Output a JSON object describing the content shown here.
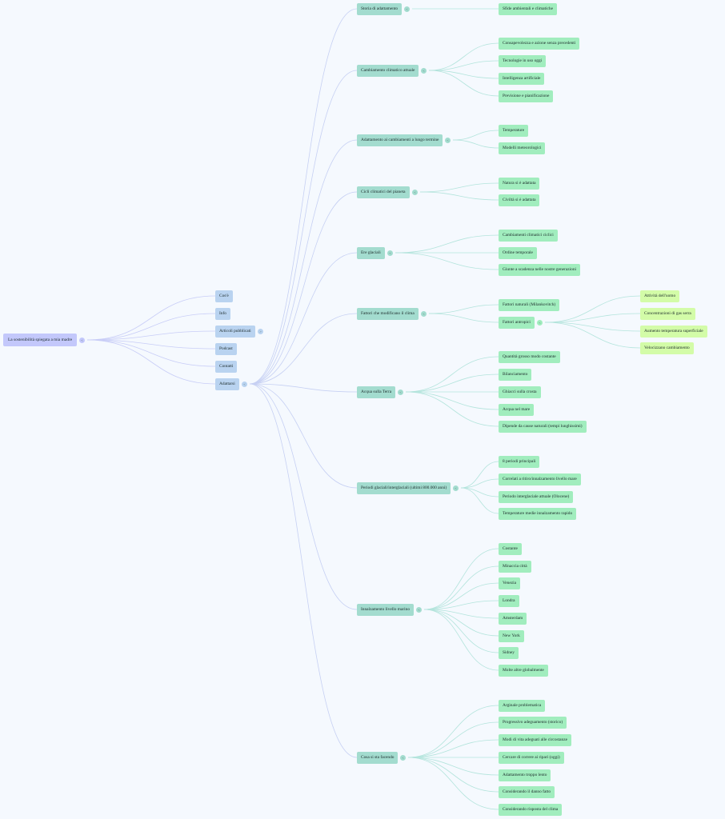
{
  "colors": {
    "background": "#f5f9fe",
    "root": "#c3c8fb",
    "level1": "#b9d3f0",
    "level2": "#a3dccf",
    "level3": "#a1edbe",
    "level4": "#d3fca8",
    "root_link": "#c8cdf7",
    "branch_link": "#b3e4dc"
  },
  "toggle_expanded": "<",
  "toggle_collapsed": ">",
  "mindmap": {
    "label": "La sostenibilità spiegata a mia madre",
    "children": [
      {
        "label": "Cos'è"
      },
      {
        "label": "Info"
      },
      {
        "label": "Articoli pubblicati",
        "collapsed": true
      },
      {
        "label": "Podcast"
      },
      {
        "label": "Contatti"
      },
      {
        "label": "Adattarsi",
        "children": [
          {
            "label": "Storia di adattamento",
            "children": [
              {
                "label": "Sfide ambientali e climatiche"
              }
            ]
          },
          {
            "label": "Cambiamento climatico attuale",
            "children": [
              {
                "label": "Consapevolezza e azione senza precedenti"
              },
              {
                "label": "Tecnologie in uso oggi"
              },
              {
                "label": "Intelligenza artificiale"
              },
              {
                "label": "Previsione e pianificazione"
              }
            ]
          },
          {
            "label": "Adattamento ai cambiamenti a lungo termine",
            "children": [
              {
                "label": "Temperature"
              },
              {
                "label": "Modelli meteorologici"
              }
            ]
          },
          {
            "label": "Cicli climatici del pianeta",
            "children": [
              {
                "label": "Natura si è adattata"
              },
              {
                "label": "Civiltà si è adattata"
              }
            ]
          },
          {
            "label": "Ere glaciali",
            "children": [
              {
                "label": "Cambiamenti climatici ciclici"
              },
              {
                "label": "Ordine temporale"
              },
              {
                "label": "Giunte a scadenza nelle nostre generazioni"
              }
            ]
          },
          {
            "label": "Fattori che modificano il clima",
            "children": [
              {
                "label": "Fattori naturali (Milankovitch)"
              },
              {
                "label": "Fattori antropici",
                "children": [
                  {
                    "label": "Attività dell'uomo"
                  },
                  {
                    "label": "Concentrazioni di gas serra"
                  },
                  {
                    "label": "Aumento temperatura superficiale"
                  },
                  {
                    "label": "Velocizzano cambiamento"
                  }
                ]
              }
            ]
          },
          {
            "label": "Acqua sulla Terra",
            "children": [
              {
                "label": "Quantità grosso modo costante"
              },
              {
                "label": "Bilanciamento"
              },
              {
                "label": "Ghiacci sulla crosta"
              },
              {
                "label": "Acqua nel mare"
              },
              {
                "label": "Dipende da cause naturali (tempi lunghissimi)"
              }
            ]
          },
          {
            "label": "Periodi glaciali/interglaciali (ultimi 800.000 anni)",
            "children": [
              {
                "label": "8 periodi principali"
              },
              {
                "label": "Correlati a ritiro/innalzamento livello mare"
              },
              {
                "label": "Periodo interglaciale attuale (Olocene)"
              },
              {
                "label": "Temperature medie innalzamento rapido"
              }
            ]
          },
          {
            "label": "Innalzamento livello marino",
            "children": [
              {
                "label": "Costante"
              },
              {
                "label": "Minaccia città"
              },
              {
                "label": "Venezia"
              },
              {
                "label": "Londra"
              },
              {
                "label": "Amsterdam"
              },
              {
                "label": "New York"
              },
              {
                "label": "Sidney"
              },
              {
                "label": "Molte altre globalmente"
              }
            ]
          },
          {
            "label": "Cosa si sta facendo",
            "children": [
              {
                "label": "Arginale problematica"
              },
              {
                "label": "Progressivo adeguamento (storico)"
              },
              {
                "label": "Modi di vita adeguati alle circostanze"
              },
              {
                "label": "Cercare di correre ai ripari (oggi)"
              },
              {
                "label": "Adattamento troppo lento"
              },
              {
                "label": "Considerando il danno fatto"
              },
              {
                "label": "Considerando risposta del clima"
              }
            ]
          }
        ]
      }
    ]
  }
}
